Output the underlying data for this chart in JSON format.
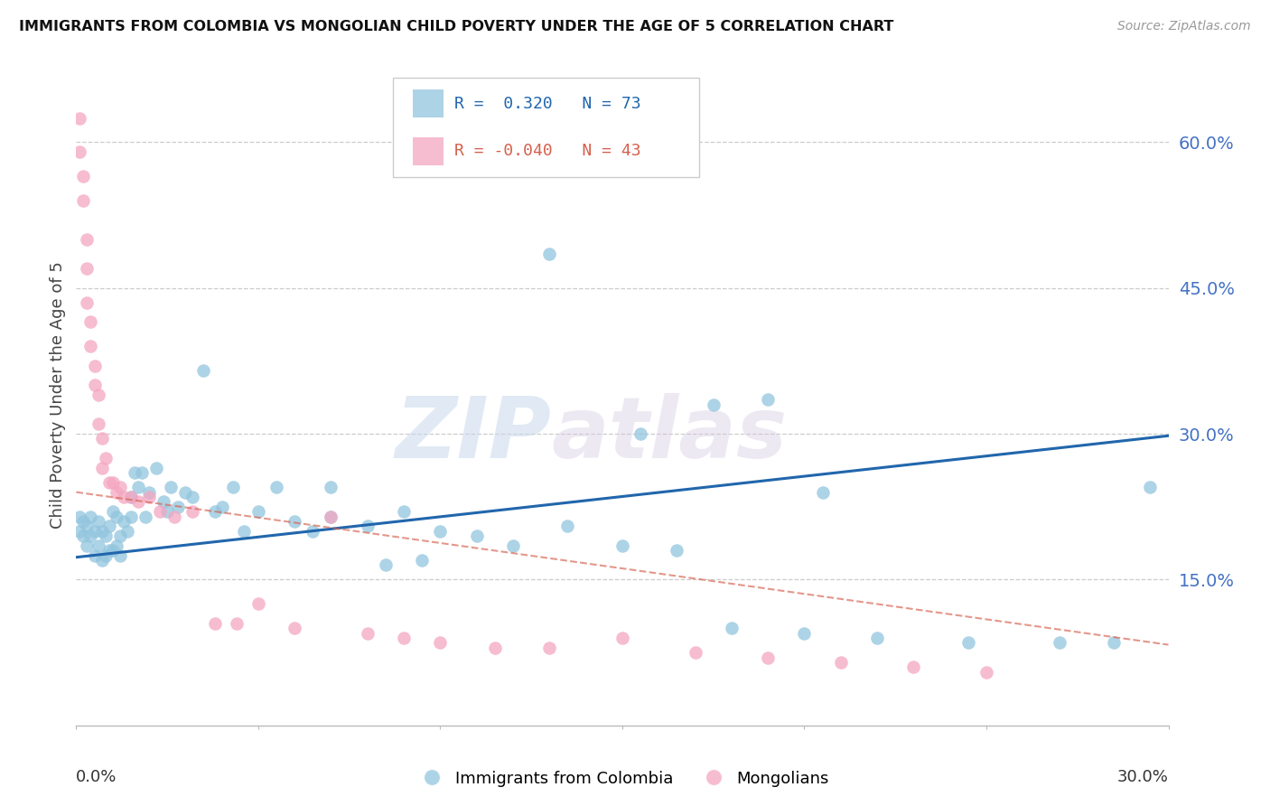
{
  "title": "IMMIGRANTS FROM COLOMBIA VS MONGOLIAN CHILD POVERTY UNDER THE AGE OF 5 CORRELATION CHART",
  "source": "Source: ZipAtlas.com",
  "ylabel": "Child Poverty Under the Age of 5",
  "ytick_labels": [
    "60.0%",
    "45.0%",
    "30.0%",
    "15.0%"
  ],
  "ytick_values": [
    0.6,
    0.45,
    0.3,
    0.15
  ],
  "xlim": [
    0.0,
    0.3
  ],
  "ylim": [
    0.0,
    0.68
  ],
  "legend_r1": "R =  0.320",
  "legend_n1": "N = 73",
  "legend_r2": "R = -0.040",
  "legend_n2": "N = 43",
  "blue_color": "#92c5de",
  "pink_color": "#f4a6c0",
  "line_blue": "#2166ac",
  "line_pink": "#d6604d",
  "blue_x": [
    0.001,
    0.001,
    0.002,
    0.002,
    0.003,
    0.003,
    0.004,
    0.004,
    0.005,
    0.005,
    0.006,
    0.006,
    0.007,
    0.007,
    0.008,
    0.008,
    0.009,
    0.009,
    0.01,
    0.01,
    0.011,
    0.011,
    0.012,
    0.012,
    0.013,
    0.014,
    0.015,
    0.015,
    0.016,
    0.017,
    0.018,
    0.019,
    0.02,
    0.022,
    0.024,
    0.025,
    0.026,
    0.028,
    0.03,
    0.032,
    0.035,
    0.038,
    0.04,
    0.043,
    0.046,
    0.05,
    0.055,
    0.06,
    0.065,
    0.07,
    0.08,
    0.09,
    0.1,
    0.11,
    0.12,
    0.135,
    0.15,
    0.165,
    0.18,
    0.2,
    0.22,
    0.245,
    0.27,
    0.285,
    0.295,
    0.155,
    0.175,
    0.19,
    0.205,
    0.13,
    0.07,
    0.085,
    0.095
  ],
  "blue_y": [
    0.2,
    0.215,
    0.195,
    0.21,
    0.205,
    0.185,
    0.215,
    0.195,
    0.2,
    0.175,
    0.21,
    0.185,
    0.2,
    0.17,
    0.195,
    0.175,
    0.205,
    0.18,
    0.22,
    0.18,
    0.215,
    0.185,
    0.195,
    0.175,
    0.21,
    0.2,
    0.235,
    0.215,
    0.26,
    0.245,
    0.26,
    0.215,
    0.24,
    0.265,
    0.23,
    0.22,
    0.245,
    0.225,
    0.24,
    0.235,
    0.365,
    0.22,
    0.225,
    0.245,
    0.2,
    0.22,
    0.245,
    0.21,
    0.2,
    0.215,
    0.205,
    0.22,
    0.2,
    0.195,
    0.185,
    0.205,
    0.185,
    0.18,
    0.1,
    0.095,
    0.09,
    0.085,
    0.085,
    0.085,
    0.245,
    0.3,
    0.33,
    0.335,
    0.24,
    0.485,
    0.245,
    0.165,
    0.17
  ],
  "pink_x": [
    0.001,
    0.001,
    0.002,
    0.002,
    0.003,
    0.003,
    0.003,
    0.004,
    0.004,
    0.005,
    0.005,
    0.006,
    0.006,
    0.007,
    0.007,
    0.008,
    0.009,
    0.01,
    0.011,
    0.012,
    0.013,
    0.015,
    0.017,
    0.02,
    0.023,
    0.027,
    0.032,
    0.038,
    0.044,
    0.05,
    0.06,
    0.07,
    0.08,
    0.09,
    0.1,
    0.115,
    0.13,
    0.15,
    0.17,
    0.19,
    0.21,
    0.23,
    0.25
  ],
  "pink_y": [
    0.625,
    0.59,
    0.565,
    0.54,
    0.5,
    0.47,
    0.435,
    0.415,
    0.39,
    0.37,
    0.35,
    0.34,
    0.31,
    0.295,
    0.265,
    0.275,
    0.25,
    0.25,
    0.24,
    0.245,
    0.235,
    0.235,
    0.23,
    0.235,
    0.22,
    0.215,
    0.22,
    0.105,
    0.105,
    0.125,
    0.1,
    0.215,
    0.095,
    0.09,
    0.085,
    0.08,
    0.08,
    0.09,
    0.075,
    0.07,
    0.065,
    0.06,
    0.055
  ],
  "blue_trend_x": [
    0.0,
    0.3
  ],
  "blue_trend_y": [
    0.173,
    0.298
  ],
  "pink_trend_x": [
    0.0,
    0.3
  ],
  "pink_trend_y": [
    0.24,
    0.083
  ],
  "watermark_zip": "ZIP",
  "watermark_atlas": "atlas",
  "background_color": "#ffffff"
}
